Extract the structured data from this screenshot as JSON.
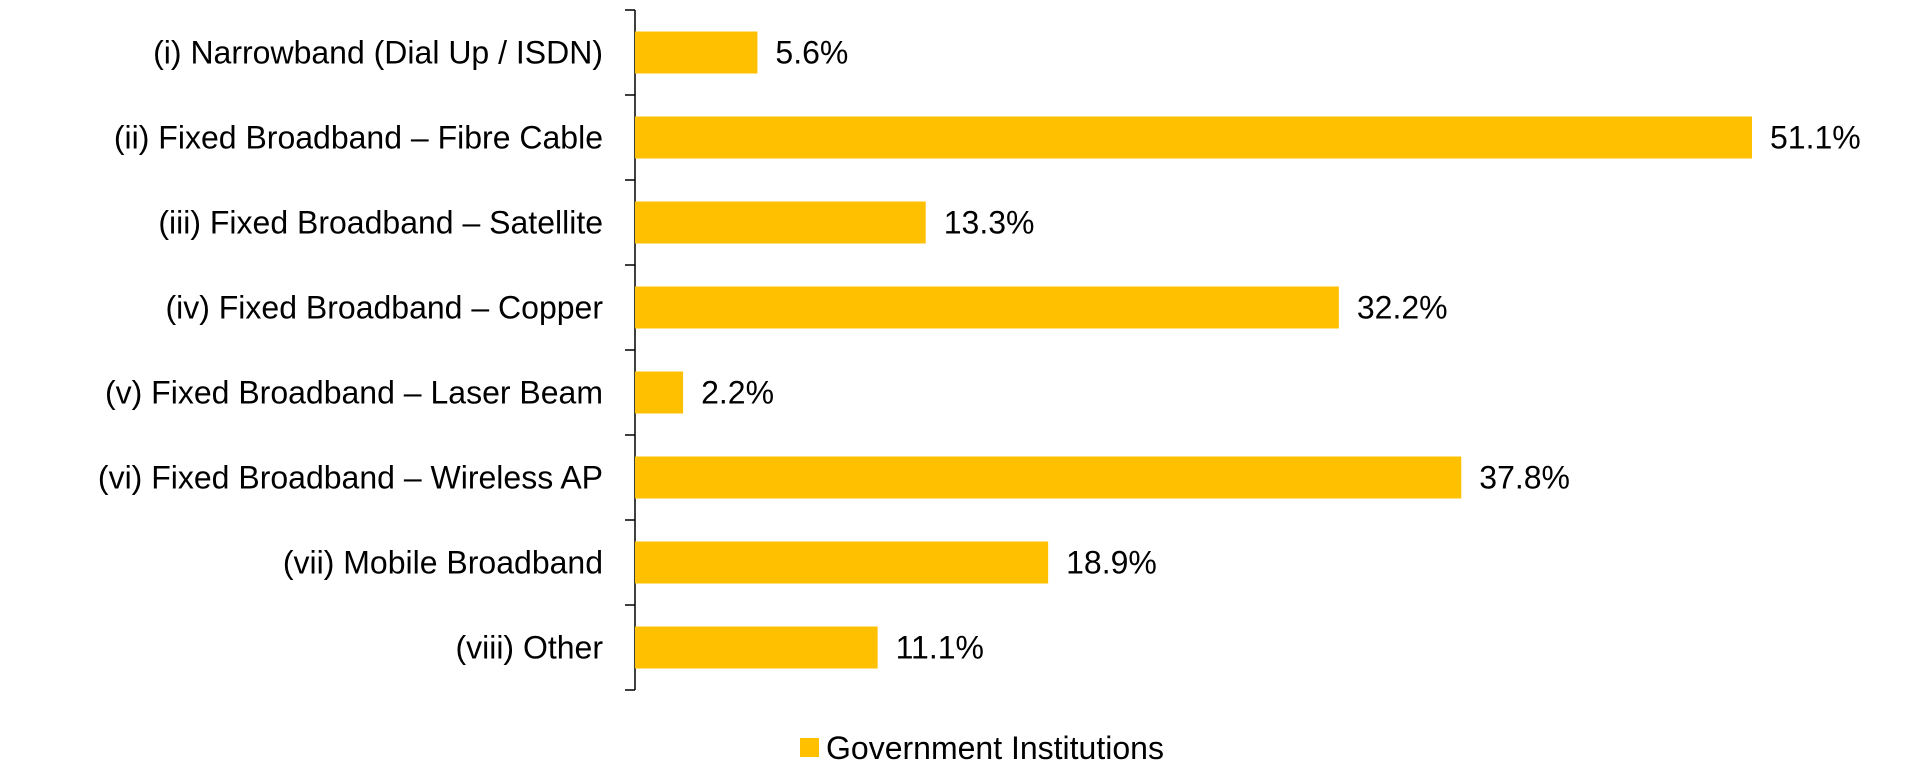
{
  "chart_data": {
    "type": "bar",
    "orientation": "horizontal",
    "categories": [
      "(i) Narrowband (Dial Up / ISDN)",
      "(ii) Fixed Broadband – Fibre Cable",
      "(iii) Fixed Broadband – Satellite",
      "(iv) Fixed Broadband – Copper",
      "(v) Fixed Broadband – Laser Beam",
      "(vi) Fixed Broadband – Wireless AP",
      "(vii) Mobile Broadband",
      "(viii) Other"
    ],
    "series": [
      {
        "name": "Government Institutions",
        "values": [
          5.6,
          51.1,
          13.3,
          32.2,
          2.2,
          37.8,
          18.9,
          11.1
        ],
        "labels": [
          "5.6%",
          "51.1%",
          "13.3%",
          "32.2%",
          "2.2%",
          "37.8%",
          "18.9%",
          "11.1%"
        ],
        "color": "#FFC000"
      }
    ],
    "xlim": [
      0,
      51.1
    ],
    "grid": false,
    "legend": "bottom-center"
  }
}
